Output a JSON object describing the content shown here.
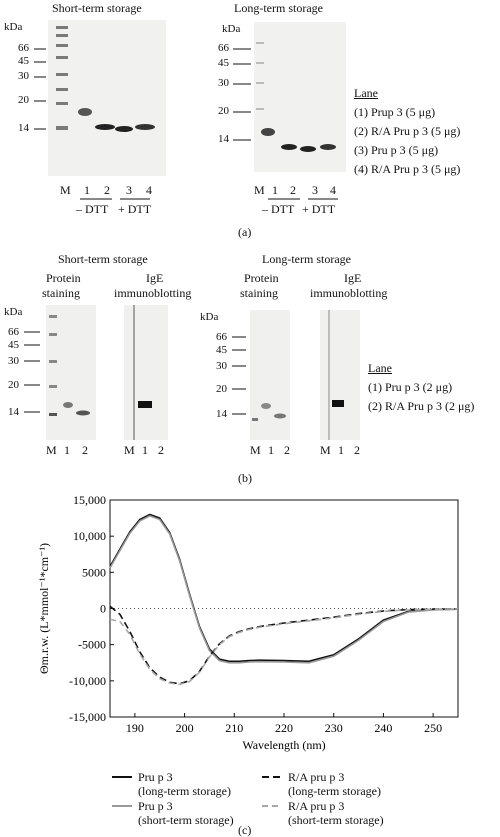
{
  "panel_a": {
    "short_title": "Short-term storage",
    "long_title": "Long-term storage",
    "kda": "kDa",
    "markers_short": [
      "66",
      "45",
      "30",
      "20",
      "14"
    ],
    "markers_long": [
      "66",
      "45",
      "30",
      "20",
      "14"
    ],
    "lanes": [
      "M",
      "1",
      "2",
      "3",
      "4"
    ],
    "minus_dtt": "– DTT",
    "plus_dtt": "+ DTT",
    "legend_title": "Lane",
    "legend_items": [
      "(1) Prup 3 (5 μg)",
      "(2) R/A Pru p 3 (5 μg)",
      "(3) Pru p 3 (5 μg)",
      "(4) R/A Pru p 3 (5 μg)"
    ],
    "caption": "(a)"
  },
  "panel_b": {
    "short_title": "Short-term storage",
    "long_title": "Long-term storage",
    "protein_staining": "Protein staining",
    "protein_staining_l1": "Protein",
    "protein_staining_l2": "staining",
    "ige_l1": "IgE",
    "ige_l2": "immunoblotting",
    "kda": "kDa",
    "markers": [
      "66",
      "45",
      "30",
      "20",
      "14"
    ],
    "lanes": [
      "M",
      "1",
      "2"
    ],
    "legend_title": "Lane",
    "legend_items": [
      "(1) Pru p 3 (2 μg)",
      "(2) R/A Pru p 3 (2 μg)"
    ],
    "caption": "(b)"
  },
  "panel_c": {
    "caption": "(c)",
    "legend": [
      {
        "l1": "Pru p 3",
        "l2": "(long-term storage)"
      },
      {
        "l1": "R/A pru p 3",
        "l2": "(long-term storage)"
      },
      {
        "l1": "Pru p 3",
        "l2": "(short-term storage)"
      },
      {
        "l1": "R/A pru p 3",
        "l2": "(short-term storage)"
      }
    ]
  },
  "chart_data": {
    "type": "line",
    "xlabel": "Wavelength (nm)",
    "ylabel": "Θm.r.w. (L*mmol⁻¹*cm⁻¹)",
    "xlim": [
      185,
      255
    ],
    "ylim": [
      -15000,
      15000
    ],
    "xticks": [
      190,
      200,
      210,
      220,
      230,
      240,
      250
    ],
    "yticks": [
      15000,
      10000,
      5000,
      0,
      -5000,
      -10000,
      -15000
    ],
    "ytick_labels": [
      "15,000",
      "10,000",
      "5000",
      "0",
      "-5000",
      "-10,000",
      "-15,000"
    ],
    "zero_line": "dotted",
    "series": [
      {
        "name": "Pru p 3 (long-term storage)",
        "color": "#111111",
        "dash": "solid",
        "x": [
          185,
          187,
          189,
          191,
          193,
          195,
          197,
          199,
          201,
          203,
          205,
          207,
          209,
          211,
          213,
          215,
          220,
          225,
          230,
          235,
          240,
          245,
          250,
          255
        ],
        "y": [
          5800,
          8200,
          10600,
          12300,
          13000,
          12500,
          10500,
          6800,
          2000,
          -2500,
          -5600,
          -7000,
          -7300,
          -7300,
          -7200,
          -7150,
          -7200,
          -7300,
          -6400,
          -4200,
          -1600,
          -400,
          -150,
          -100
        ]
      },
      {
        "name": "Pru p 3 (short-term storage)",
        "color": "#9a9a9a",
        "dash": "solid",
        "x": [
          185,
          187,
          189,
          191,
          193,
          195,
          197,
          199,
          201,
          203,
          205,
          207,
          209,
          211,
          213,
          215,
          220,
          225,
          230,
          235,
          240,
          245,
          250,
          255
        ],
        "y": [
          5600,
          8000,
          10400,
          12100,
          12800,
          12300,
          10300,
          6600,
          1800,
          -2700,
          -5800,
          -7200,
          -7500,
          -7500,
          -7400,
          -7350,
          -7400,
          -7500,
          -6600,
          -4400,
          -1800,
          -500,
          -200,
          -100
        ]
      },
      {
        "name": "R/A pru p 3 (long-term storage)",
        "color": "#111111",
        "dash": "7,4",
        "x": [
          185,
          187,
          189,
          191,
          193,
          195,
          197,
          199,
          201,
          203,
          205,
          207,
          209,
          211,
          213,
          215,
          220,
          225,
          230,
          235,
          240,
          245,
          250,
          255
        ],
        "y": [
          300,
          -800,
          -3200,
          -6000,
          -8200,
          -9500,
          -10200,
          -10400,
          -10000,
          -8700,
          -6600,
          -4900,
          -3800,
          -3200,
          -2800,
          -2500,
          -2000,
          -1600,
          -1200,
          -700,
          -350,
          -150,
          -80,
          -50
        ]
      },
      {
        "name": "R/A pru p 3 (short-term storage)",
        "color": "#a8a8a8",
        "dash": "6,4",
        "x": [
          185,
          187,
          189,
          191,
          193,
          195,
          197,
          199,
          201,
          203,
          205,
          207,
          209,
          211,
          213,
          215,
          220,
          225,
          230,
          235,
          240,
          245,
          250,
          255
        ],
        "y": [
          -1500,
          -1800,
          -3600,
          -6300,
          -8400,
          -9700,
          -10300,
          -10500,
          -10100,
          -8800,
          -6700,
          -5000,
          -3900,
          -3300,
          -2900,
          -2600,
          -2100,
          -1700,
          -1300,
          -800,
          -400,
          -200,
          -100,
          -60
        ]
      }
    ]
  }
}
